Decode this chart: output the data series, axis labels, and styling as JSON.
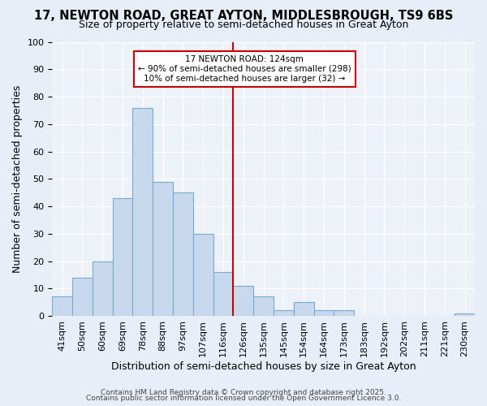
{
  "title": "17, NEWTON ROAD, GREAT AYTON, MIDDLESBROUGH, TS9 6BS",
  "subtitle": "Size of property relative to semi-detached houses in Great Ayton",
  "xlabel": "Distribution of semi-detached houses by size in Great Ayton",
  "ylabel": "Number of semi-detached properties",
  "bar_labels": [
    "41sqm",
    "50sqm",
    "60sqm",
    "69sqm",
    "78sqm",
    "88sqm",
    "97sqm",
    "107sqm",
    "116sqm",
    "126sqm",
    "135sqm",
    "145sqm",
    "154sqm",
    "164sqm",
    "173sqm",
    "183sqm",
    "192sqm",
    "202sqm",
    "211sqm",
    "221sqm",
    "230sqm"
  ],
  "values": [
    7,
    14,
    20,
    43,
    76,
    49,
    45,
    30,
    16,
    11,
    7,
    2,
    5,
    2,
    2,
    0,
    0,
    0,
    0,
    0,
    1
  ],
  "bar_color": "#c8d8ed",
  "bar_edge_color": "#7aaad0",
  "vline_x_idx": 9,
  "vline_color": "#cc0000",
  "annotation_title": "17 NEWTON ROAD: 124sqm",
  "annotation_line1": "← 90% of semi-detached houses are smaller (298)",
  "annotation_line2": "10% of semi-detached houses are larger (32) →",
  "annotation_box_edge_color": "#cc0000",
  "annotation_box_fill": "#ffffff",
  "ylim": [
    0,
    100
  ],
  "yticks": [
    0,
    10,
    20,
    30,
    40,
    50,
    60,
    70,
    80,
    90,
    100
  ],
  "footer1": "Contains HM Land Registry data © Crown copyright and database right 2025.",
  "footer2": "Contains public sector information licensed under the Open Government Licence 3.0.",
  "bg_color": "#e8eef7",
  "plot_bg_color": "#edf1f8",
  "title_fontsize": 10.5,
  "subtitle_fontsize": 9,
  "tick_fontsize": 8,
  "axis_label_fontsize": 9,
  "footer_fontsize": 6.5
}
